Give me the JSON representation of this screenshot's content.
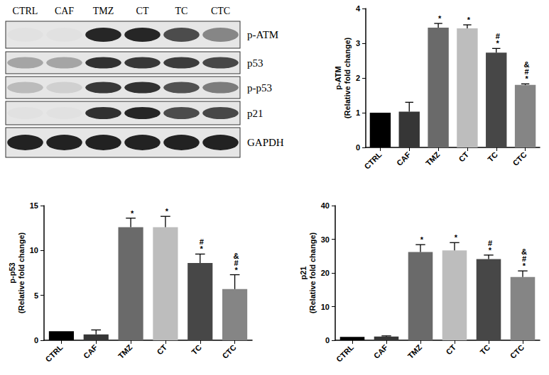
{
  "blot": {
    "lanes": [
      "CTRL",
      "CAF",
      "TMZ",
      "CT",
      "TC",
      "CTC"
    ],
    "rows": [
      {
        "label": "p-ATM",
        "band_intensity": [
          0.02,
          0.02,
          0.9,
          0.9,
          0.72,
          0.45
        ]
      },
      {
        "label": "p53",
        "band_intensity": [
          0.3,
          0.3,
          0.85,
          0.82,
          0.8,
          0.75
        ]
      },
      {
        "label": "p-p53",
        "band_intensity": [
          0.2,
          0.1,
          0.82,
          0.85,
          0.7,
          0.5
        ]
      },
      {
        "label": "p21",
        "band_intensity": [
          0.02,
          0.02,
          0.85,
          0.9,
          0.72,
          0.75
        ]
      },
      {
        "label": "GAPDH",
        "band_intensity": [
          0.92,
          0.92,
          0.92,
          0.92,
          0.92,
          0.92
        ]
      }
    ]
  },
  "chart_data": [
    {
      "type": "bar",
      "y_label": "p-ATM\n(Relative fold change)",
      "categories": [
        "CTRL",
        "CAF",
        "TMZ",
        "CT",
        "TC",
        "CTC"
      ],
      "values": [
        1,
        1.03,
        3.45,
        3.43,
        2.73,
        1.8
      ],
      "errors": [
        0,
        0.27,
        0.12,
        0.1,
        0.12,
        0.03
      ],
      "significance": [
        null,
        null,
        [
          "*"
        ],
        [
          "*"
        ],
        [
          "*",
          "#"
        ],
        [
          "*",
          "#",
          "&"
        ]
      ],
      "colors": [
        "#000000",
        "#363636",
        "#6a6a6a",
        "#bdbdbd",
        "#474747",
        "#858585"
      ],
      "ylim": [
        0,
        4
      ],
      "yticks": [
        0,
        1,
        2,
        3,
        4
      ],
      "grid": false
    },
    {
      "type": "bar",
      "y_label": "p-p53\n(Relative fold change)",
      "categories": [
        "CTRL",
        "CAF",
        "TMZ",
        "CT",
        "TC",
        "CTC"
      ],
      "values": [
        1,
        0.65,
        12.6,
        12.6,
        8.6,
        5.7
      ],
      "errors": [
        0,
        0.5,
        1.0,
        1.2,
        1.0,
        1.6
      ],
      "significance": [
        null,
        null,
        [
          "*"
        ],
        [
          "*"
        ],
        [
          "*",
          "#"
        ],
        [
          "*",
          "#",
          "&"
        ]
      ],
      "colors": [
        "#000000",
        "#363636",
        "#6a6a6a",
        "#bdbdbd",
        "#474747",
        "#858585"
      ],
      "ylim": [
        0,
        15
      ],
      "yticks": [
        0,
        5,
        10,
        15
      ],
      "grid": false
    },
    {
      "type": "bar",
      "y_label": "p21\n(Relative fold change)",
      "categories": [
        "CTRL",
        "CAF",
        "TMZ",
        "CT",
        "TC",
        "CTC"
      ],
      "values": [
        1,
        1.1,
        26.2,
        26.7,
        24.1,
        18.8
      ],
      "errors": [
        0,
        0.2,
        2.2,
        2.3,
        1.2,
        1.8
      ],
      "significance": [
        null,
        null,
        [
          "*"
        ],
        [
          "*"
        ],
        [
          "*",
          "#"
        ],
        [
          "*",
          "#",
          "&"
        ]
      ],
      "colors": [
        "#000000",
        "#363636",
        "#6a6a6a",
        "#bdbdbd",
        "#474747",
        "#858585"
      ],
      "ylim": [
        0,
        40
      ],
      "yticks": [
        0,
        10,
        20,
        30,
        40
      ],
      "grid": false
    }
  ]
}
